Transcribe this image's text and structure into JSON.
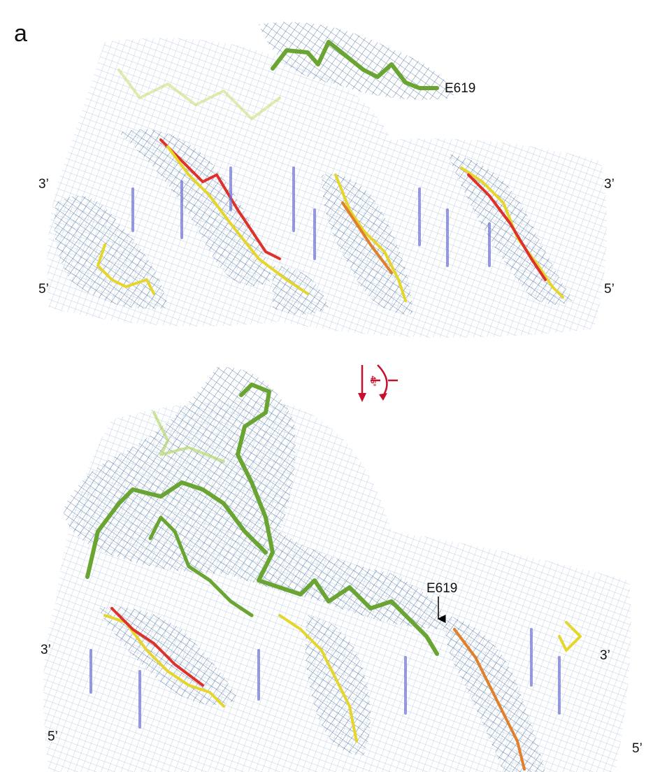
{
  "panel_label": "a",
  "top_view": {
    "residue_label": "E619",
    "left_labels": [
      "3’",
      "5’"
    ],
    "right_labels": [
      "3’",
      "5’"
    ]
  },
  "rotation_label": "45°",
  "bottom_view": {
    "residue_label": "E619",
    "left_labels": [
      "3’",
      "5’"
    ],
    "right_labels": [
      "3’",
      "5’"
    ]
  }
}
